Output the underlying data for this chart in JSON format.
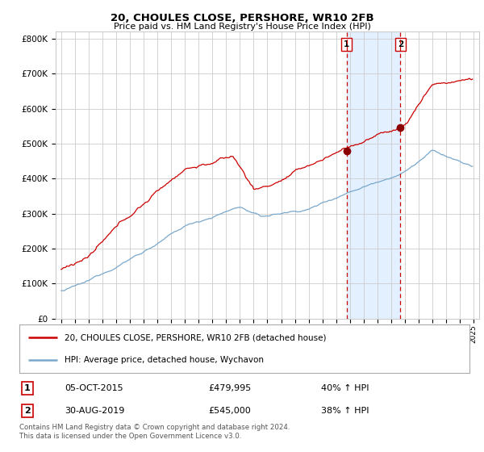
{
  "title": "20, CHOULES CLOSE, PERSHORE, WR10 2FB",
  "subtitle": "Price paid vs. HM Land Registry's House Price Index (HPI)",
  "legend_line1": "20, CHOULES CLOSE, PERSHORE, WR10 2FB (detached house)",
  "legend_line2": "HPI: Average price, detached house, Wychavon",
  "transaction1_date": "05-OCT-2015",
  "transaction1_price": 479995,
  "transaction1_label": "40% ↑ HPI",
  "transaction2_date": "30-AUG-2019",
  "transaction2_price": 545000,
  "transaction2_label": "38% ↑ HPI",
  "footnote": "Contains HM Land Registry data © Crown copyright and database right 2024.\nThis data is licensed under the Open Government Licence v3.0.",
  "red_color": "#cc0000",
  "blue_color": "#7aa8cc",
  "shade_color": "#ddeeff",
  "dashed_color": "#cc0000",
  "ylim": [
    0,
    820000
  ],
  "yticks": [
    0,
    100000,
    200000,
    300000,
    400000,
    500000,
    600000,
    700000,
    800000
  ],
  "ytick_labels": [
    "£0",
    "£100K",
    "£200K",
    "£300K",
    "£400K",
    "£500K",
    "£600K",
    "£700K",
    "£800K"
  ],
  "background_color": "#ffffff",
  "grid_color": "#cccccc",
  "transaction1_year": 2015.75,
  "transaction2_year": 2019.67,
  "start_year": 1995,
  "end_year": 2025
}
